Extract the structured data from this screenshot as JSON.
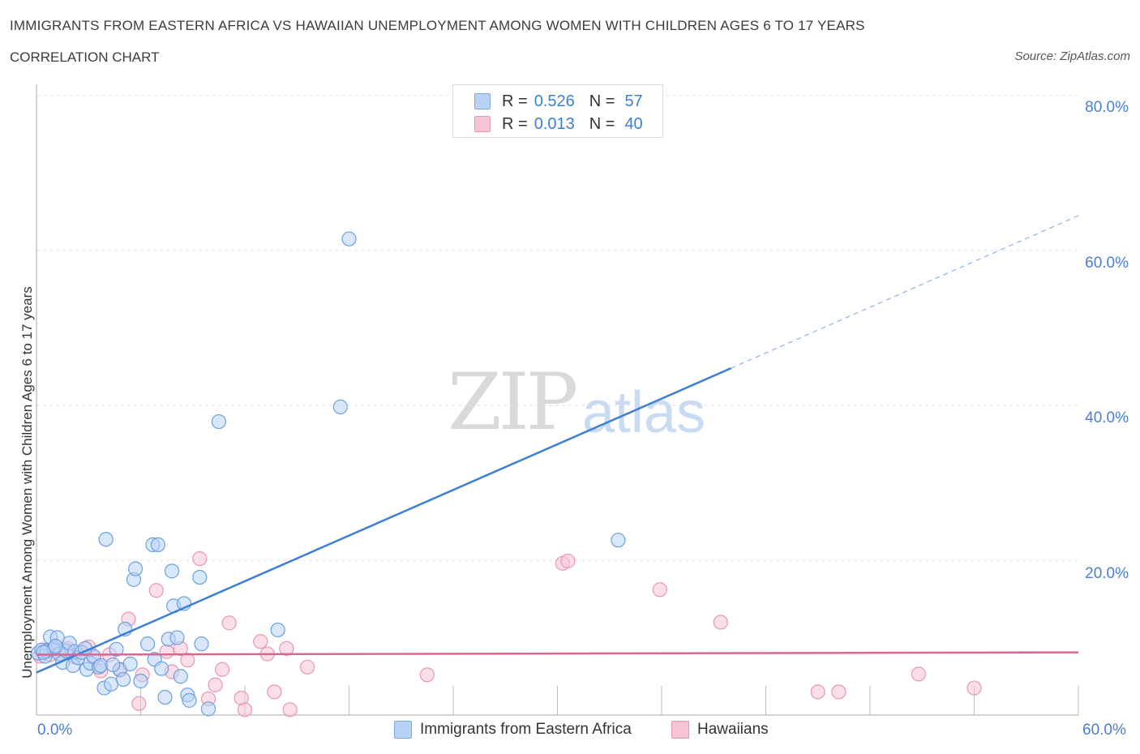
{
  "title": "IMMIGRANTS FROM EASTERN AFRICA VS HAWAIIAN UNEMPLOYMENT AMONG WOMEN WITH CHILDREN AGES 6 TO 17 YEARS",
  "subtitle": "CORRELATION CHART",
  "source": "Source: ZipAtlas.com",
  "watermark": {
    "zip": "ZIP",
    "atlas": "atlas"
  },
  "colors": {
    "blue": "#3d7fd6",
    "blue_fill": "#b8d3f5",
    "pink": "#e0638f",
    "pink_fill": "#f7c4d5",
    "grid": "#dcdcdc"
  },
  "legend": {
    "r_label": "R =",
    "n_label": "N =",
    "series": [
      {
        "r": "0.526",
        "n": "57"
      },
      {
        "r": "0.013",
        "n": "40"
      }
    ]
  },
  "chart_data": {
    "type": "scatter",
    "title": "IMMIGRANTS FROM EASTERN AFRICA VS HAWAIIAN UNEMPLOYMENT AMONG WOMEN WITH CHILDREN AGES 6 TO 17 YEARS",
    "xlabel": "",
    "ylabel": "Unemployment Among Women with Children Ages 6 to 17 years",
    "xlim": [
      0,
      60
    ],
    "ylim": [
      0,
      80
    ],
    "x_tick_labels": [
      "0.0%",
      "60.0%"
    ],
    "y_tick_labels": [
      "20.0%",
      "40.0%",
      "60.0%",
      "80.0%"
    ],
    "y_ticks": [
      20,
      40,
      60,
      80
    ],
    "legend_position": "top-center",
    "series": [
      {
        "name": "Immigrants from Eastern Africa",
        "color": "#3d7fd6",
        "trend": {
          "x0": 0,
          "y0": 5.5,
          "x1": 40,
          "y1": 44.8,
          "dash_to_x": 60,
          "dash_to_y": 64.5
        },
        "points": [
          [
            0.1,
            8.0
          ],
          [
            0.3,
            8.4
          ],
          [
            0.5,
            7.6
          ],
          [
            0.6,
            8.3
          ],
          [
            0.8,
            10.1
          ],
          [
            1.0,
            8.6
          ],
          [
            1.2,
            10.0
          ],
          [
            1.3,
            7.9
          ],
          [
            1.5,
            6.8
          ],
          [
            1.7,
            8.3
          ],
          [
            1.9,
            9.3
          ],
          [
            2.1,
            6.4
          ],
          [
            2.2,
            8.2
          ],
          [
            2.4,
            7.4
          ],
          [
            2.6,
            8.1
          ],
          [
            2.9,
            5.9
          ],
          [
            3.1,
            6.7
          ],
          [
            3.3,
            7.6
          ],
          [
            3.6,
            6.2
          ],
          [
            3.7,
            6.4
          ],
          [
            3.9,
            3.5
          ],
          [
            4.0,
            22.7
          ],
          [
            4.3,
            4.0
          ],
          [
            4.6,
            8.5
          ],
          [
            4.8,
            5.9
          ],
          [
            5.0,
            4.6
          ],
          [
            5.1,
            11.1
          ],
          [
            5.4,
            6.6
          ],
          [
            5.6,
            17.5
          ],
          [
            5.7,
            18.9
          ],
          [
            6.0,
            4.4
          ],
          [
            6.4,
            9.2
          ],
          [
            6.7,
            22.0
          ],
          [
            6.8,
            7.2
          ],
          [
            7.0,
            22.0
          ],
          [
            7.2,
            6.0
          ],
          [
            7.4,
            2.3
          ],
          [
            7.6,
            9.8
          ],
          [
            7.8,
            18.6
          ],
          [
            7.9,
            14.1
          ],
          [
            8.1,
            10.0
          ],
          [
            8.3,
            5.0
          ],
          [
            8.5,
            14.4
          ],
          [
            8.7,
            2.6
          ],
          [
            8.8,
            1.9
          ],
          [
            9.4,
            17.8
          ],
          [
            9.5,
            9.2
          ],
          [
            9.9,
            0.8
          ],
          [
            10.5,
            37.9
          ],
          [
            13.9,
            11.0
          ],
          [
            17.5,
            39.8
          ],
          [
            18.0,
            61.5
          ],
          [
            33.5,
            22.6
          ],
          [
            0.4,
            8.1
          ],
          [
            2.8,
            8.6
          ],
          [
            1.1,
            8.9
          ],
          [
            4.4,
            6.5
          ]
        ]
      },
      {
        "name": "Hawaiians",
        "color": "#e0638f",
        "trend": {
          "x0": 0,
          "y0": 7.8,
          "x1": 60,
          "y1": 8.1
        },
        "points": [
          [
            0.2,
            7.6
          ],
          [
            0.5,
            8.4
          ],
          [
            0.8,
            7.8
          ],
          [
            1.1,
            8.9
          ],
          [
            1.4,
            7.9
          ],
          [
            1.8,
            8.6
          ],
          [
            2.2,
            7.5
          ],
          [
            2.6,
            8.1
          ],
          [
            3.0,
            8.8
          ],
          [
            3.3,
            7.4
          ],
          [
            3.7,
            5.7
          ],
          [
            4.2,
            7.8
          ],
          [
            4.8,
            5.8
          ],
          [
            5.3,
            12.4
          ],
          [
            5.9,
            1.5
          ],
          [
            6.1,
            5.2
          ],
          [
            6.9,
            16.1
          ],
          [
            7.5,
            8.2
          ],
          [
            7.8,
            5.6
          ],
          [
            8.3,
            8.6
          ],
          [
            8.7,
            7.1
          ],
          [
            9.4,
            20.2
          ],
          [
            9.9,
            2.1
          ],
          [
            10.3,
            3.9
          ],
          [
            10.7,
            5.9
          ],
          [
            11.1,
            11.9
          ],
          [
            11.8,
            2.2
          ],
          [
            12.0,
            0.7
          ],
          [
            12.9,
            9.5
          ],
          [
            13.3,
            7.9
          ],
          [
            13.7,
            3.0
          ],
          [
            14.4,
            8.6
          ],
          [
            14.6,
            0.7
          ],
          [
            15.6,
            6.2
          ],
          [
            22.5,
            5.2
          ],
          [
            30.3,
            19.6
          ],
          [
            30.6,
            19.9
          ],
          [
            35.9,
            16.2
          ],
          [
            39.4,
            12.0
          ],
          [
            50.8,
            5.3
          ]
        ]
      }
    ],
    "extra_pink_points": [
      [
        45.0,
        3.0
      ],
      [
        46.2,
        3.0
      ],
      [
        54.0,
        3.5
      ]
    ]
  },
  "bottom_legend": {
    "items": [
      {
        "label": "Immigrants from Eastern Africa"
      },
      {
        "label": "Hawaiians"
      }
    ]
  }
}
